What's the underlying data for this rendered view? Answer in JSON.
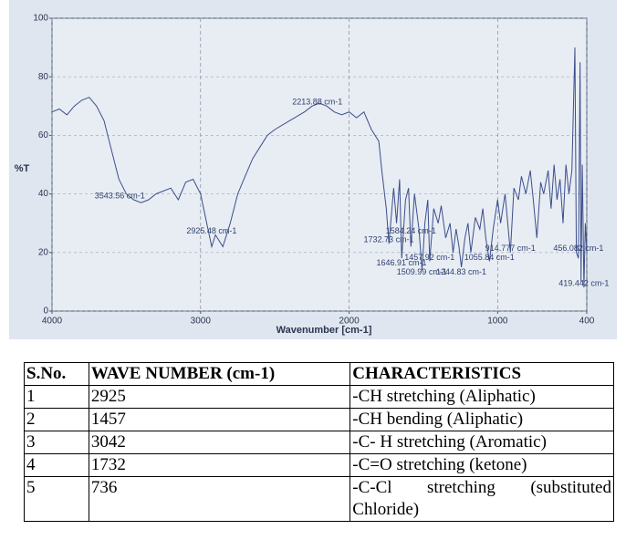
{
  "chart_data": {
    "type": "line",
    "ylabel": "%T",
    "xlabel": "Wavenumber [cm-1]",
    "xlim": [
      4000,
      400
    ],
    "ylim": [
      0,
      100
    ],
    "xticks": [
      4000,
      3000,
      2000,
      1000,
      400
    ],
    "yticks": [
      0,
      20,
      40,
      60,
      80,
      100
    ],
    "grid": true,
    "color": "#3c4e8c",
    "x": [
      4000,
      3950,
      3900,
      3850,
      3800,
      3750,
      3700,
      3650,
      3600,
      3550,
      3500,
      3450,
      3400,
      3350,
      3300,
      3250,
      3200,
      3150,
      3100,
      3050,
      3000,
      2950,
      2925,
      2900,
      2850,
      2800,
      2750,
      2700,
      2650,
      2600,
      2550,
      2500,
      2400,
      2300,
      2250,
      2200,
      2150,
      2100,
      2050,
      2000,
      1950,
      1900,
      1850,
      1800,
      1780,
      1750,
      1732,
      1700,
      1680,
      1660,
      1646,
      1620,
      1600,
      1584,
      1560,
      1530,
      1509,
      1490,
      1470,
      1457,
      1430,
      1400,
      1380,
      1350,
      1320,
      1300,
      1280,
      1260,
      1244,
      1220,
      1200,
      1180,
      1150,
      1120,
      1100,
      1080,
      1055,
      1030,
      1000,
      980,
      950,
      914,
      890,
      860,
      840,
      810,
      780,
      760,
      736,
      710,
      690,
      660,
      640,
      620,
      600,
      580,
      560,
      540,
      520,
      500,
      480,
      470,
      456,
      445,
      439,
      430,
      419,
      410,
      400
    ],
    "values": [
      68,
      69,
      67,
      70,
      72,
      73,
      70,
      65,
      55,
      45,
      40,
      38,
      37,
      38,
      40,
      41,
      42,
      38,
      44,
      45,
      40,
      28,
      22,
      26,
      22,
      30,
      40,
      46,
      52,
      56,
      60,
      62,
      65,
      68,
      70,
      71,
      70,
      68,
      67,
      68,
      66,
      68,
      62,
      58,
      48,
      35,
      23,
      42,
      30,
      45,
      18,
      38,
      42,
      22,
      40,
      28,
      14,
      30,
      38,
      17,
      35,
      30,
      36,
      25,
      30,
      20,
      28,
      22,
      15,
      25,
      30,
      20,
      32,
      28,
      35,
      25,
      17,
      28,
      38,
      30,
      40,
      20,
      42,
      38,
      46,
      40,
      48,
      38,
      25,
      44,
      40,
      48,
      35,
      50,
      38,
      45,
      30,
      50,
      40,
      48,
      90,
      20,
      18,
      85,
      10,
      50,
      8,
      30,
      20
    ],
    "annotations": [
      {
        "text": "3543.56 cm-1",
        "x": 3543.56,
        "y": 38
      },
      {
        "text": "2925.48 cm-1",
        "x": 2925.48,
        "y": 26
      },
      {
        "text": "2213.88 cm-1",
        "x": 2213.88,
        "y": 70
      },
      {
        "text": "1584.24 cm-1",
        "x": 1584.24,
        "y": 26
      },
      {
        "text": "1732.73 cm-1",
        "x": 1732.73,
        "y": 23
      },
      {
        "text": "1646.91 cm-1",
        "x": 1646.91,
        "y": 15
      },
      {
        "text": "1457.92 cm-1",
        "x": 1457.92,
        "y": 17
      },
      {
        "text": "1509.99 cm-1",
        "x": 1509.99,
        "y": 12
      },
      {
        "text": "1244.83 cm-1",
        "x": 1244.83,
        "y": 12
      },
      {
        "text": "1055.84 cm-1",
        "x": 1055.84,
        "y": 17
      },
      {
        "text": "914.777 cm-1",
        "x": 914.777,
        "y": 20
      },
      {
        "text": "456.082 cm-1",
        "x": 456.082,
        "y": 20
      },
      {
        "text": "419.442 cm-1",
        "x": 419.442,
        "y": 8
      }
    ]
  },
  "table": {
    "header": [
      "S.No.",
      "WAVE NUMBER (cm-1)",
      "CHARACTERISTICS"
    ],
    "rows": [
      [
        "1",
        "2925",
        "-CH stretching (Aliphatic)"
      ],
      [
        "2",
        "1457",
        "-CH bending (Aliphatic)"
      ],
      [
        "3",
        "3042",
        "-C- H stretching (Aromatic)"
      ],
      [
        "4",
        "1732",
        "-C=O stretching (ketone)"
      ],
      [
        "5",
        "736",
        "-C-Cl stretching (substituted Chloride)"
      ]
    ]
  }
}
